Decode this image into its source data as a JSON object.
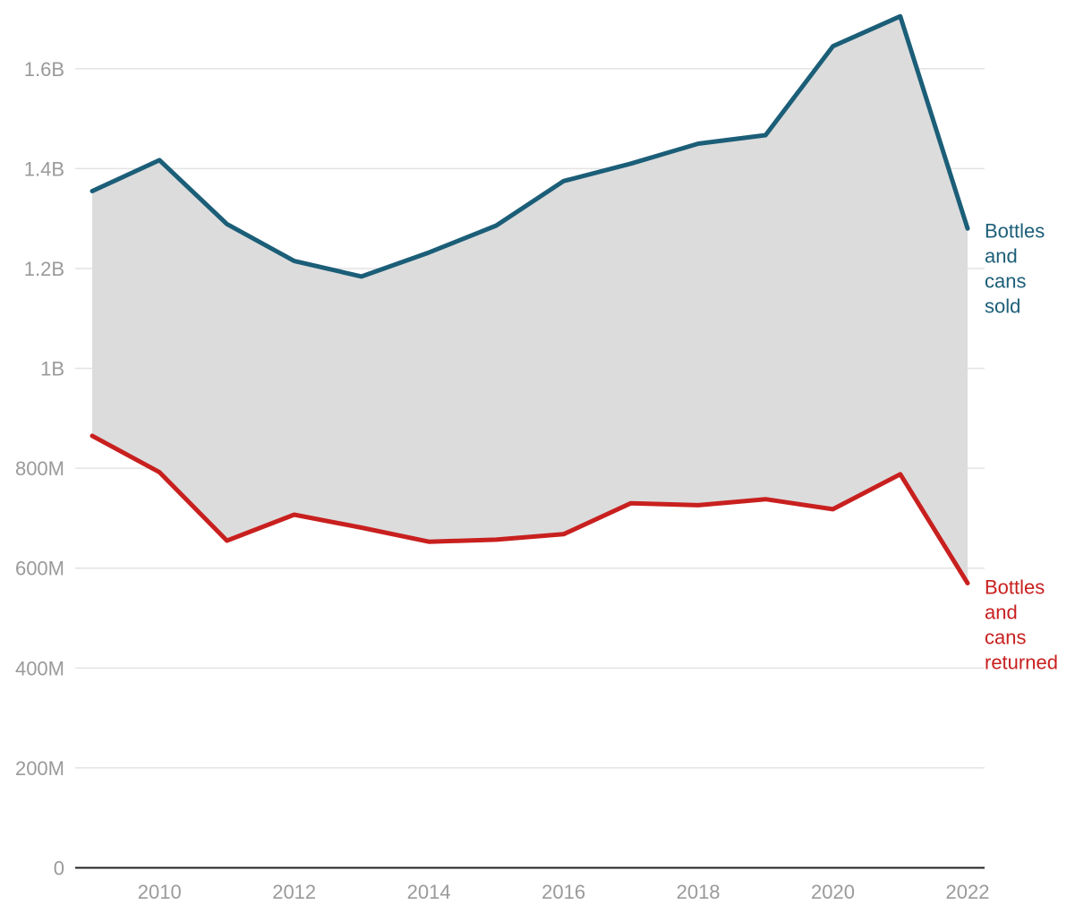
{
  "chart_data": {
    "type": "area",
    "title": "",
    "xlabel": "",
    "ylabel": "",
    "x": [
      2009,
      2010,
      2011,
      2012,
      2013,
      2014,
      2015,
      2016,
      2017,
      2018,
      2019,
      2020,
      2021,
      2022
    ],
    "x_tick_labels": [
      "2010",
      "2012",
      "2014",
      "2016",
      "2018",
      "2020",
      "2022"
    ],
    "y_tick_labels": [
      "0",
      "200M",
      "400M",
      "600M",
      "800M",
      "1B",
      "1.2B",
      "1.4B",
      "1.6B"
    ],
    "ylim": [
      0,
      1700000000
    ],
    "grid": true,
    "fill_between_series": true,
    "fill_color": "#dcdcdc",
    "series": [
      {
        "name_lines": [
          "Bottles",
          "and",
          "cans",
          "sold"
        ],
        "color": "#1b5e78",
        "values": [
          1355000000,
          1417000000,
          1289000000,
          1215000000,
          1184000000,
          1232000000,
          1286000000,
          1375000000,
          1410000000,
          1450000000,
          1467000000,
          1645000000,
          1705000000,
          1280000000
        ]
      },
      {
        "name_lines": [
          "Bottles",
          "and",
          "cans",
          "returned"
        ],
        "color": "#c8201f",
        "values": [
          865000000,
          792000000,
          655000000,
          707000000,
          681000000,
          653000000,
          657000000,
          668000000,
          730000000,
          726000000,
          738000000,
          718000000,
          788000000,
          570000000
        ]
      }
    ]
  }
}
